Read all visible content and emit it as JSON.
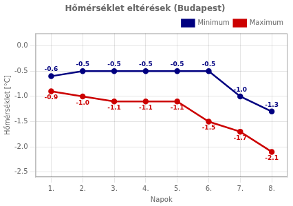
{
  "chart_data": {
    "type": "line",
    "title": "Hőmérséklet eltérések (Budapest)",
    "x_label": "Napok",
    "y_label": "Hőmérséklet [°C]",
    "x": [
      1,
      2,
      3,
      4,
      5,
      6,
      7,
      8
    ],
    "series": [
      {
        "name": "Minimum",
        "color": "#000080",
        "marker": "circle",
        "line_style": "solid",
        "values": [
          -0.6,
          -0.5,
          -0.5,
          -0.5,
          -0.5,
          -0.5,
          -1.0,
          -1.3
        ],
        "value_labels": [
          "-0.6",
          "-0.5",
          "-0.5",
          "-0.5",
          "-0.5",
          "-0.5",
          "-1.0",
          "-1.3"
        ]
      },
      {
        "name": "Maximum",
        "color": "#cc0000",
        "marker": "circle",
        "line_style": "solid",
        "values": [
          -0.9,
          -1.0,
          -1.1,
          -1.1,
          -1.1,
          -1.5,
          -1.7,
          -2.1
        ],
        "value_labels": [
          "-0.9",
          "-1.0",
          "-1.1",
          "-1.1",
          "-1.1",
          "-1.5",
          "-1.7",
          "-2.1"
        ]
      }
    ],
    "xlim": [
      0.5,
      8.5
    ],
    "xticks": [
      {
        "value": 1,
        "label": "1."
      },
      {
        "value": 2,
        "label": "2."
      },
      {
        "value": 3,
        "label": "3."
      },
      {
        "value": 4,
        "label": "4."
      },
      {
        "value": 5,
        "label": "5."
      },
      {
        "value": 6,
        "label": "6."
      },
      {
        "value": 7,
        "label": "7."
      },
      {
        "value": 8,
        "label": "8."
      }
    ],
    "ylim": [
      -2.6,
      0.25
    ],
    "yticks": [
      {
        "value": 0,
        "label": "0.0"
      },
      -0.5,
      {
        "value": -1,
        "label": "-1.0"
      },
      -1.5,
      {
        "value": -2,
        "label": "-2.0"
      },
      -2.5
    ],
    "grid": true,
    "legend": "upper right",
    "data_labels": true
  }
}
